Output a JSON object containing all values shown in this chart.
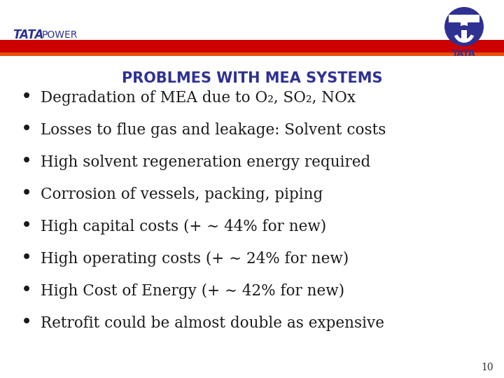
{
  "title": "PROBLMES WITH MEA SYSTEMS",
  "title_color": "#2e3192",
  "title_fontsize": 15,
  "background_color": "#ffffff",
  "header_red_color": "#cc0000",
  "header_orange_color": "#e8500a",
  "bullet_color": "#1a1a1a",
  "bullet_fontsize": 15.5,
  "bullets": [
    "Degradation of MEA due to O₂, SO₂, NOx",
    "Losses to flue gas and leakage: Solvent costs",
    "High solvent regeneration energy required",
    "Corrosion of vessels, packing, piping",
    "High capital costs (+ ∼ 44% for new)",
    "High operating costs (+ ∼ 24% for new)",
    "High Cost of Energy (+ ∼ 42% for new)",
    "Retrofit could be almost double as expensive"
  ],
  "tata_color": "#2e3192",
  "page_number": "10"
}
